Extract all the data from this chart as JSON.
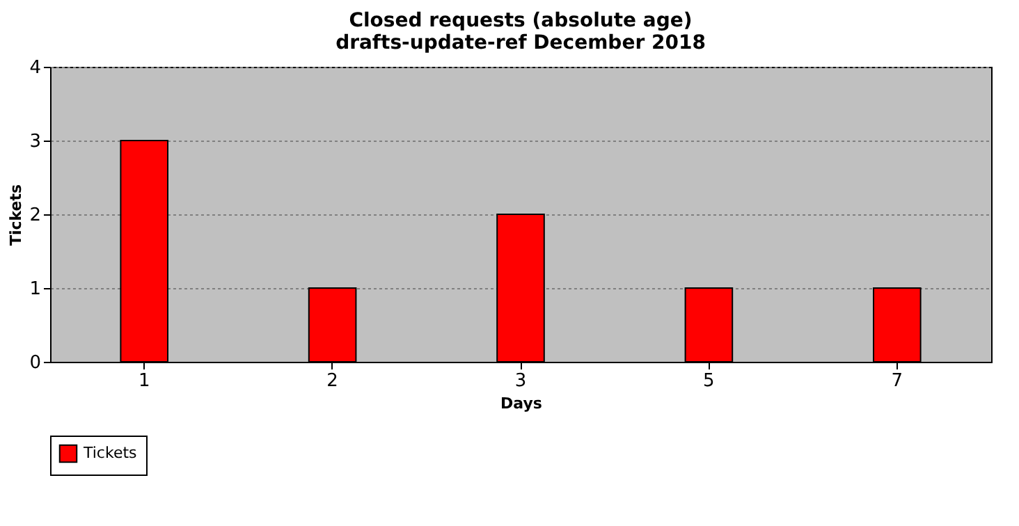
{
  "chart_data": {
    "type": "bar",
    "title": [
      "Closed requests (absolute age)",
      "drafts-update-ref December 2018"
    ],
    "xlabel": "Days",
    "ylabel": "Tickets",
    "categories": [
      "1",
      "2",
      "3",
      "5",
      "7"
    ],
    "series": [
      {
        "name": "Tickets",
        "color": "#ff0000",
        "values": [
          3,
          1,
          2,
          1,
          1
        ]
      }
    ],
    "ylim": [
      0,
      4
    ],
    "yticks": [
      0,
      1,
      2,
      3,
      4
    ],
    "grid": "y",
    "legend": "bottom"
  }
}
